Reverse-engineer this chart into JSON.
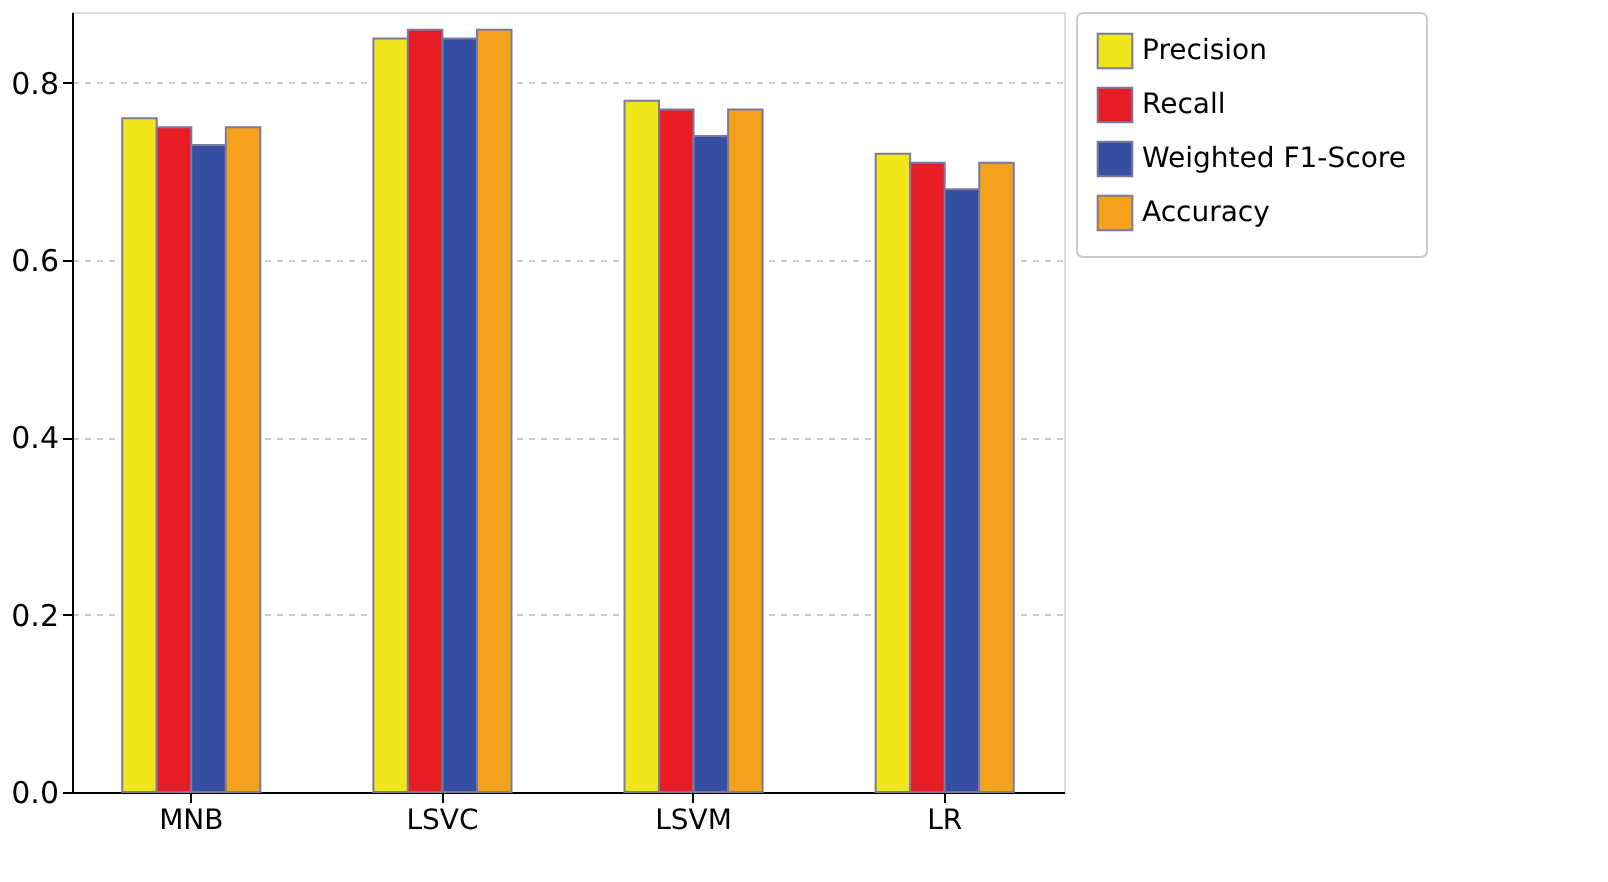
{
  "chart_data": {
    "type": "bar",
    "categories": [
      "MNB",
      "LSVC",
      "LSVM",
      "LR"
    ],
    "series": [
      {
        "name": "Precision",
        "color": "#f0e61a",
        "values": [
          0.76,
          0.85,
          0.78,
          0.72
        ]
      },
      {
        "name": "Recall",
        "color": "#e81c24",
        "values": [
          0.75,
          0.86,
          0.77,
          0.71
        ]
      },
      {
        "name": "Weighted F1-Score",
        "color": "#3550a2",
        "values": [
          0.73,
          0.85,
          0.74,
          0.68
        ]
      },
      {
        "name": "Accuracy",
        "color": "#f6a11b",
        "values": [
          0.75,
          0.86,
          0.77,
          0.71
        ]
      }
    ],
    "ylim": [
      0,
      0.88
    ],
    "yticks": [
      {
        "value": 0,
        "label": "0.0"
      },
      {
        "value": 0.2,
        "label": "0.2"
      },
      {
        "value": 0.4,
        "label": "0.4"
      },
      {
        "value": 0.6,
        "label": "0.6"
      },
      {
        "value": 0.8,
        "label": "0.8"
      }
    ],
    "grid": "y",
    "legend": "right"
  }
}
